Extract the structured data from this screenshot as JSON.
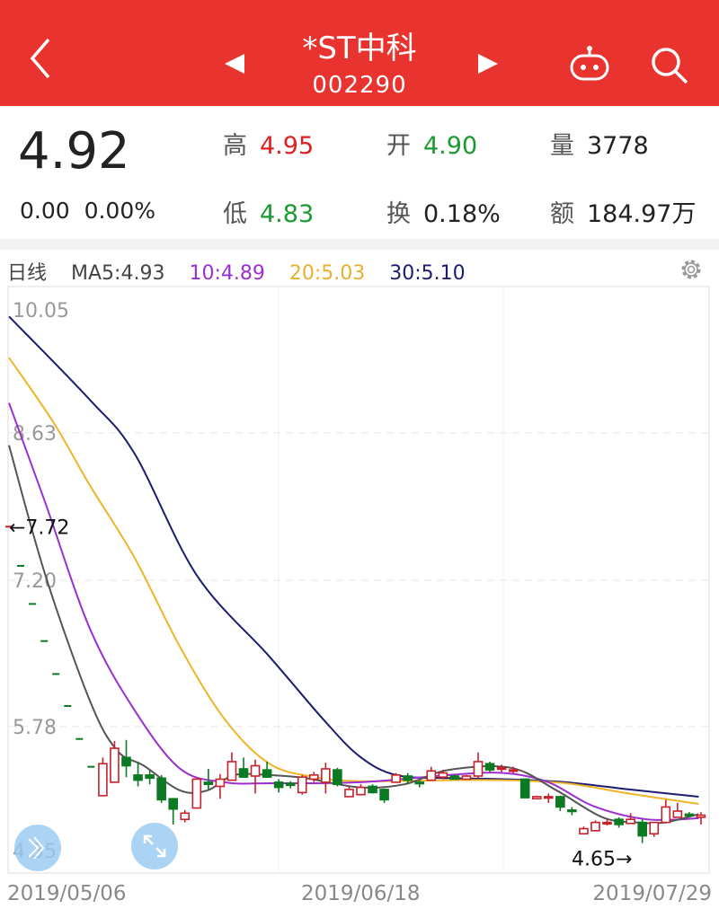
{
  "header": {
    "title": "*ST中科",
    "code": "002290",
    "icons": [
      "back-icon",
      "prev-stock-icon",
      "next-stock-icon",
      "robot-icon",
      "search-icon"
    ]
  },
  "quote": {
    "price": "4.92",
    "change": "0.00",
    "change_pct": "0.00%",
    "high_label": "高",
    "high": "4.95",
    "open_label": "开",
    "open": "4.90",
    "volume_label": "量",
    "volume": "3778",
    "low_label": "低",
    "low": "4.83",
    "turnover_label": "换",
    "turnover": "0.18%",
    "amount_label": "额",
    "amount": "184.97万"
  },
  "legend": {
    "period": "日线",
    "ma5": "MA5:4.93",
    "ma10": "10:4.89",
    "ma20": "20:5.03",
    "ma30": "30:5.10"
  },
  "colors": {
    "header": "#e8332f",
    "up": "#c8202a",
    "down": "#0b7a22",
    "ma5": "#555555",
    "ma10": "#9b2fd0",
    "ma20": "#f0b429",
    "ma30": "#1c1c70"
  },
  "chart_data": {
    "type": "candlestick",
    "ylim": [
      4.35,
      10.05
    ],
    "yticks": [
      "10.05",
      "8.63",
      "7.20",
      "5.78",
      "4.35"
    ],
    "xticks": [
      "2019/05/06",
      "2019/06/18",
      "2019/07/29"
    ],
    "annotations": {
      "max": "←7.72",
      "min": "4.65→"
    },
    "candles": [
      [
        7.72,
        7.72,
        7.72,
        7.72
      ],
      [
        7.34,
        7.34,
        7.34,
        7.34
      ],
      [
        6.97,
        6.97,
        6.97,
        6.97
      ],
      [
        6.61,
        6.61,
        6.61,
        6.61
      ],
      [
        6.29,
        6.29,
        6.29,
        6.29
      ],
      [
        5.98,
        5.98,
        5.98,
        5.98
      ],
      [
        5.66,
        5.66,
        5.66,
        5.66
      ],
      [
        5.39,
        5.39,
        5.39,
        5.39
      ],
      [
        5.11,
        5.48,
        5.11,
        5.42
      ],
      [
        5.24,
        5.64,
        5.24,
        5.57
      ],
      [
        5.48,
        5.65,
        5.29,
        5.4
      ],
      [
        5.31,
        5.44,
        5.2,
        5.26
      ],
      [
        5.31,
        5.35,
        5.22,
        5.28
      ],
      [
        5.28,
        5.31,
        5.04,
        5.07
      ],
      [
        5.08,
        5.08,
        4.83,
        4.98
      ],
      [
        4.88,
        4.97,
        4.85,
        4.94
      ],
      [
        4.99,
        5.27,
        4.99,
        5.27
      ],
      [
        5.24,
        5.37,
        5.16,
        5.22
      ],
      [
        5.2,
        5.32,
        5.08,
        5.27
      ],
      [
        5.26,
        5.53,
        5.26,
        5.44
      ],
      [
        5.37,
        5.48,
        5.29,
        5.29
      ],
      [
        5.3,
        5.46,
        5.13,
        5.4
      ],
      [
        5.36,
        5.44,
        5.29,
        5.29
      ],
      [
        5.24,
        5.27,
        5.14,
        5.19
      ],
      [
        5.23,
        5.25,
        5.18,
        5.21
      ],
      [
        5.14,
        5.31,
        5.12,
        5.29
      ],
      [
        5.27,
        5.34,
        5.24,
        5.31
      ],
      [
        5.24,
        5.43,
        5.13,
        5.37
      ],
      [
        5.36,
        5.38,
        5.2,
        5.22
      ],
      [
        5.1,
        5.2,
        5.1,
        5.17
      ],
      [
        5.12,
        5.22,
        5.12,
        5.19
      ],
      [
        5.2,
        5.22,
        5.13,
        5.14
      ],
      [
        5.17,
        5.18,
        5.04,
        5.07
      ],
      [
        5.24,
        5.33,
        5.24,
        5.31
      ],
      [
        5.3,
        5.33,
        5.22,
        5.26
      ],
      [
        5.24,
        5.26,
        5.19,
        5.23
      ],
      [
        5.26,
        5.39,
        5.26,
        5.35
      ],
      [
        5.29,
        5.36,
        5.27,
        5.33
      ],
      [
        5.3,
        5.31,
        5.27,
        5.27
      ],
      [
        5.27,
        5.31,
        5.27,
        5.3
      ],
      [
        5.3,
        5.53,
        5.28,
        5.44
      ],
      [
        5.42,
        5.44,
        5.34,
        5.36
      ],
      [
        5.37,
        5.41,
        5.34,
        5.38
      ],
      [
        5.35,
        5.39,
        5.33,
        5.36
      ],
      [
        5.27,
        5.27,
        5.09,
        5.09
      ],
      [
        5.08,
        5.11,
        5.08,
        5.1
      ],
      [
        5.09,
        5.13,
        5.04,
        5.1
      ],
      [
        5.1,
        5.11,
        4.96,
        5.0
      ],
      [
        4.97,
        5.0,
        4.92,
        4.96
      ],
      [
        4.74,
        4.81,
        4.74,
        4.79
      ],
      [
        4.77,
        4.87,
        4.77,
        4.85
      ],
      [
        4.84,
        4.88,
        4.82,
        4.85
      ],
      [
        4.88,
        4.9,
        4.8,
        4.83
      ],
      [
        4.84,
        4.94,
        4.84,
        4.88
      ],
      [
        4.85,
        4.88,
        4.65,
        4.72
      ],
      [
        4.74,
        4.85,
        4.71,
        4.85
      ],
      [
        4.85,
        5.07,
        4.84,
        5.0
      ],
      [
        4.9,
        5.04,
        4.9,
        4.96
      ],
      [
        4.93,
        4.95,
        4.9,
        4.92
      ],
      [
        4.9,
        4.95,
        4.83,
        4.92
      ]
    ],
    "ma": {
      "ma30": [
        [
          0,
          9.76
        ],
        [
          6.9,
          8.95
        ],
        [
          10.7,
          8.43
        ],
        [
          16,
          7.25
        ],
        [
          22.2,
          6.46
        ],
        [
          26.8,
          5.85
        ],
        [
          29.9,
          5.49
        ],
        [
          33,
          5.31
        ],
        [
          37.5,
          5.28
        ],
        [
          42.1,
          5.27
        ],
        [
          47.5,
          5.24
        ],
        [
          52.9,
          5.17
        ],
        [
          58.8,
          5.1
        ]
      ],
      "ma20": [
        [
          0,
          9.36
        ],
        [
          3.8,
          8.73
        ],
        [
          6.9,
          8.12
        ],
        [
          10.7,
          7.42
        ],
        [
          14.6,
          6.55
        ],
        [
          18.4,
          5.85
        ],
        [
          22.2,
          5.42
        ],
        [
          26.1,
          5.29
        ],
        [
          29.9,
          5.25
        ],
        [
          37.5,
          5.26
        ],
        [
          42.1,
          5.26
        ],
        [
          47.5,
          5.23
        ],
        [
          52.9,
          5.13
        ],
        [
          58.8,
          5.03
        ]
      ],
      "ma10": [
        [
          0,
          8.92
        ],
        [
          3.1,
          7.95
        ],
        [
          6.9,
          6.73
        ],
        [
          10.7,
          5.94
        ],
        [
          14.6,
          5.37
        ],
        [
          18.4,
          5.24
        ],
        [
          22.2,
          5.23
        ],
        [
          29.9,
          5.24
        ],
        [
          37.5,
          5.31
        ],
        [
          42.1,
          5.33
        ],
        [
          46,
          5.24
        ],
        [
          49.8,
          5.01
        ],
        [
          54.4,
          4.88
        ],
        [
          58.8,
          4.89
        ]
      ],
      "ma5": [
        [
          0,
          8.51
        ],
        [
          3.1,
          7.25
        ],
        [
          6.9,
          6.03
        ],
        [
          9.2,
          5.55
        ],
        [
          11.5,
          5.4
        ],
        [
          14.6,
          5.16
        ],
        [
          16.9,
          5.16
        ],
        [
          19.2,
          5.31
        ],
        [
          22.2,
          5.31
        ],
        [
          25.3,
          5.28
        ],
        [
          29.9,
          5.19
        ],
        [
          33.7,
          5.22
        ],
        [
          37.5,
          5.36
        ],
        [
          42.8,
          5.38
        ],
        [
          46.7,
          5.16
        ],
        [
          50.6,
          4.9
        ],
        [
          53.6,
          4.85
        ],
        [
          55.9,
          4.85
        ],
        [
          58.8,
          4.93
        ]
      ]
    }
  }
}
